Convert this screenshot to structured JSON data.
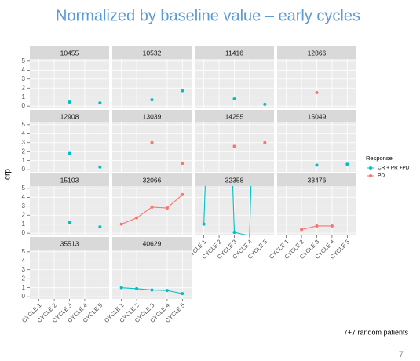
{
  "chart_data": {
    "type": "line",
    "title": "Normalized by baseline value – early cycles",
    "y_label": "crp",
    "categories": [
      "CYCLE 1",
      "CYCLE 2",
      "CYCLE 3",
      "CYCLE 4",
      "CYCLE 5"
    ],
    "ylim": [
      -0.25,
      5.25
    ],
    "yticks": [
      0,
      1,
      2,
      3,
      4,
      5
    ],
    "grid": true,
    "legend_title": "Response",
    "series": [
      {
        "name": "CR + PR +PD",
        "color": "#00BFC4"
      },
      {
        "name": "PD",
        "color": "#F8766D"
      }
    ],
    "panels": [
      {
        "name": "10455",
        "color": "#00BFC4",
        "values": [
          null,
          null,
          0.45,
          null,
          0.35
        ]
      },
      {
        "name": "10532",
        "color": "#00BFC4",
        "values": [
          null,
          null,
          0.7,
          null,
          1.7
        ]
      },
      {
        "name": "11416",
        "color": "#00BFC4",
        "values": [
          null,
          null,
          0.8,
          null,
          0.2
        ]
      },
      {
        "name": "12866",
        "color": "#F8766D",
        "values": [
          null,
          null,
          1.5,
          null,
          null
        ]
      },
      {
        "name": "12908",
        "color": "#00BFC4",
        "values": [
          null,
          null,
          1.8,
          null,
          0.3
        ]
      },
      {
        "name": "13039",
        "color": "#F8766D",
        "values": [
          null,
          null,
          3.0,
          null,
          0.7
        ]
      },
      {
        "name": "14255",
        "color": "#F8766D",
        "values": [
          null,
          null,
          2.6,
          null,
          3.0
        ]
      },
      {
        "name": "15049",
        "color": "#00BFC4",
        "values": [
          null,
          null,
          0.5,
          null,
          0.6
        ]
      },
      {
        "name": "15103",
        "color": "#00BFC4",
        "values": [
          null,
          null,
          1.2,
          null,
          0.7
        ]
      },
      {
        "name": "32066",
        "color": "#F8766D",
        "values": [
          1.0,
          1.7,
          2.9,
          2.8,
          4.3
        ]
      },
      {
        "name": "32358",
        "color": "#00BFC4",
        "values": [
          1.0,
          50,
          0.1,
          -0.3,
          60
        ]
      },
      {
        "name": "33476",
        "color": "#F8766D",
        "values": [
          null,
          0.4,
          0.8,
          0.8,
          null
        ]
      },
      {
        "name": "35513",
        "color": "#00BFC4",
        "values": [
          null,
          null,
          null,
          null,
          null
        ]
      },
      {
        "name": "40629",
        "color": "#00BFC4",
        "values": [
          1.0,
          0.9,
          0.75,
          0.7,
          0.35
        ]
      }
    ]
  },
  "footer": {
    "note": "7+7 random patients",
    "page_number": "7"
  }
}
